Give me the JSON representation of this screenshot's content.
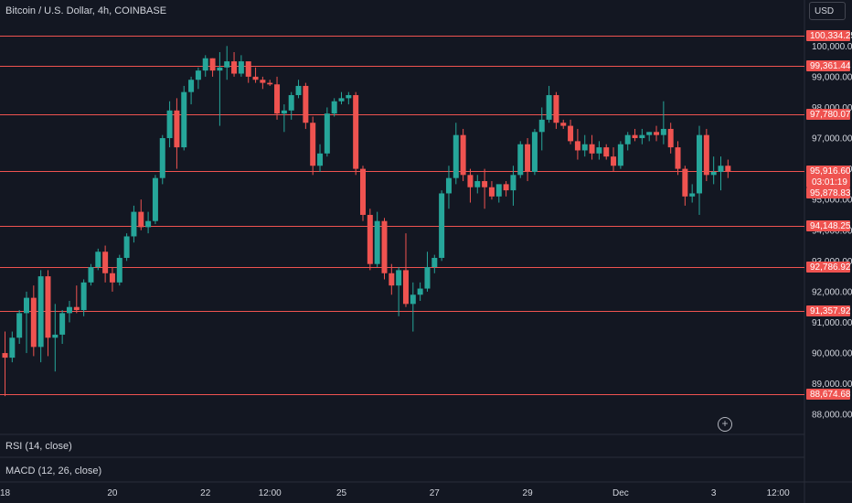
{
  "header": {
    "title": "Bitcoin / U.S. Dollar, 4h, COINBASE",
    "currency_button": "USD"
  },
  "indicators": {
    "rsi_label": "RSI (14, close)",
    "macd_label": "MACD (12, 26, close)"
  },
  "colors": {
    "background": "#131722",
    "up": "#26a69a",
    "down": "#ef5350",
    "level_line": "#ef5350",
    "axis_text": "#d1d4dc"
  },
  "chart_data": {
    "type": "candlestick",
    "symbol": "Bitcoin / U.S. Dollar",
    "interval": "4h",
    "exchange": "COINBASE",
    "y_range": [
      87500,
      101200
    ],
    "y_ticks": [
      88000,
      89000,
      90000,
      91000,
      92000,
      93000,
      94000,
      95000,
      96000,
      97000,
      98000,
      99000,
      100000
    ],
    "y_tick_labels": [
      "88,000.00",
      "89,000.00",
      "90,000.00",
      "91,000.00",
      "92,000.00",
      "93,000.00",
      "94,000.00",
      "95,000.00",
      "96,000.00",
      "97,000.00",
      "98,000.00",
      "99,000.00",
      "100,000.00"
    ],
    "x_ticks": [
      {
        "label": "18",
        "index": 0
      },
      {
        "label": "20",
        "index": 15
      },
      {
        "label": "22",
        "index": 28
      },
      {
        "label": "12:00",
        "index": 37
      },
      {
        "label": "25",
        "index": 47
      },
      {
        "label": "27",
        "index": 60
      },
      {
        "label": "29",
        "index": 73
      },
      {
        "label": "Dec",
        "index": 86
      },
      {
        "label": "3",
        "index": 99
      },
      {
        "label": "12:00",
        "index": 108
      }
    ],
    "horizontal_levels": [
      "100,334.25",
      "99,361.44",
      "97,780.07",
      "95,916.60",
      "94,148.25",
      "92,786.92",
      "91,357.92",
      "88,674.68"
    ],
    "price_label": {
      "price": "95,916.60",
      "countdown": "03:01:19"
    },
    "secondary_label": "95,878.83",
    "candles": [
      [
        90000,
        90700,
        88600,
        89850
      ],
      [
        89850,
        90700,
        89700,
        90500
      ],
      [
        90500,
        91400,
        90300,
        91300
      ],
      [
        91300,
        92000,
        90000,
        91800
      ],
      [
        91800,
        92200,
        89900,
        90200
      ],
      [
        90200,
        92700,
        89700,
        92500
      ],
      [
        92500,
        92700,
        89900,
        90500
      ],
      [
        90500,
        91600,
        89400,
        90600
      ],
      [
        90600,
        91400,
        90300,
        91300
      ],
      [
        91300,
        91700,
        91000,
        91500
      ],
      [
        91500,
        92200,
        91300,
        91400
      ],
      [
        91400,
        92400,
        91200,
        92300
      ],
      [
        92300,
        92900,
        92200,
        92800
      ],
      [
        92800,
        93400,
        92700,
        93300
      ],
      [
        93300,
        93500,
        92300,
        92600
      ],
      [
        92600,
        92800,
        92000,
        92300
      ],
      [
        92300,
        93200,
        92200,
        93100
      ],
      [
        93100,
        93900,
        93000,
        93800
      ],
      [
        93800,
        94800,
        93600,
        94600
      ],
      [
        94600,
        95000,
        94000,
        94100
      ],
      [
        94100,
        94600,
        93900,
        94300
      ],
      [
        94300,
        95800,
        94200,
        95700
      ],
      [
        95700,
        97100,
        95500,
        97000
      ],
      [
        97000,
        98200,
        96700,
        97900
      ],
      [
        97900,
        98300,
        96000,
        96700
      ],
      [
        96700,
        98700,
        96600,
        98500
      ],
      [
        98500,
        99000,
        98100,
        98900
      ],
      [
        98900,
        99300,
        98600,
        99200
      ],
      [
        99200,
        99700,
        99000,
        99600
      ],
      [
        99600,
        99600,
        99000,
        99200
      ],
      [
        99200,
        99800,
        97400,
        99300
      ],
      [
        99300,
        100000,
        98900,
        99500
      ],
      [
        99500,
        99800,
        99000,
        99100
      ],
      [
        99100,
        99700,
        99000,
        99500
      ],
      [
        99500,
        99500,
        98800,
        99000
      ],
      [
        99000,
        99300,
        98800,
        98900
      ],
      [
        98900,
        99000,
        98600,
        98800
      ],
      [
        98800,
        98900,
        98700,
        98750
      ],
      [
        98750,
        99000,
        97600,
        97800
      ],
      [
        97800,
        98100,
        97200,
        97900
      ],
      [
        97900,
        98500,
        97600,
        98400
      ],
      [
        98400,
        98900,
        98300,
        98700
      ],
      [
        98700,
        98800,
        97300,
        97500
      ],
      [
        97500,
        97700,
        95800,
        96100
      ],
      [
        96100,
        96800,
        95900,
        96500
      ],
      [
        96500,
        98000,
        96400,
        97800
      ],
      [
        97800,
        98300,
        97700,
        98200
      ],
      [
        98200,
        98500,
        98100,
        98300
      ],
      [
        98300,
        98500,
        98100,
        98400
      ],
      [
        98400,
        98500,
        95800,
        96000
      ],
      [
        96000,
        96100,
        94300,
        94500
      ],
      [
        94500,
        94700,
        92700,
        92900
      ],
      [
        92900,
        94600,
        92800,
        94300
      ],
      [
        94300,
        94400,
        92400,
        92600
      ],
      [
        92600,
        92900,
        91900,
        92200
      ],
      [
        92200,
        92800,
        91200,
        92700
      ],
      [
        92700,
        93900,
        91500,
        91600
      ],
      [
        91600,
        92300,
        90700,
        91900
      ],
      [
        91900,
        92300,
        91700,
        92100
      ],
      [
        92100,
        93300,
        92000,
        92800
      ],
      [
        92800,
        93200,
        92600,
        93100
      ],
      [
        93100,
        95300,
        93000,
        95200
      ],
      [
        95200,
        96100,
        94700,
        95700
      ],
      [
        95700,
        97500,
        95500,
        97100
      ],
      [
        97100,
        97300,
        95600,
        95800
      ],
      [
        95800,
        96000,
        94900,
        95400
      ],
      [
        95400,
        95800,
        95200,
        95600
      ],
      [
        95600,
        96000,
        94700,
        95400
      ],
      [
        95400,
        95600,
        95000,
        95100
      ],
      [
        95100,
        95400,
        94900,
        95500
      ],
      [
        95500,
        95600,
        95100,
        95300
      ],
      [
        95300,
        96100,
        94800,
        95800
      ],
      [
        95800,
        96900,
        95700,
        96800
      ],
      [
        96800,
        97000,
        95600,
        95900
      ],
      [
        95900,
        97300,
        95800,
        97200
      ],
      [
        97200,
        98000,
        96600,
        97600
      ],
      [
        97600,
        98700,
        97500,
        98400
      ],
      [
        98400,
        98500,
        97300,
        97500
      ],
      [
        97500,
        97600,
        97300,
        97400
      ],
      [
        97400,
        97600,
        96800,
        96900
      ],
      [
        96900,
        97300,
        96300,
        96600
      ],
      [
        96600,
        97100,
        96400,
        96800
      ],
      [
        96800,
        97100,
        96300,
        96500
      ],
      [
        96500,
        96900,
        96300,
        96700
      ],
      [
        96700,
        96800,
        96300,
        96400
      ],
      [
        96400,
        96700,
        95900,
        96100
      ],
      [
        96100,
        96900,
        96000,
        96800
      ],
      [
        96800,
        97200,
        96600,
        97100
      ],
      [
        97100,
        97300,
        96900,
        97000
      ],
      [
        97000,
        97300,
        96800,
        97100
      ],
      [
        97100,
        97200,
        96900,
        97200
      ],
      [
        97200,
        97400,
        96900,
        97100
      ],
      [
        97100,
        98200,
        96800,
        97300
      ],
      [
        97300,
        97500,
        96500,
        96700
      ],
      [
        96700,
        96900,
        95800,
        96000
      ],
      [
        96000,
        96100,
        94800,
        95100
      ],
      [
        95100,
        95500,
        94900,
        95200
      ],
      [
        95200,
        97400,
        94500,
        97100
      ],
      [
        97100,
        97300,
        95600,
        95800
      ],
      [
        95800,
        96400,
        95500,
        95900
      ],
      [
        95900,
        96400,
        95300,
        96100
      ],
      [
        96100,
        96300,
        95700,
        95900
      ]
    ]
  }
}
